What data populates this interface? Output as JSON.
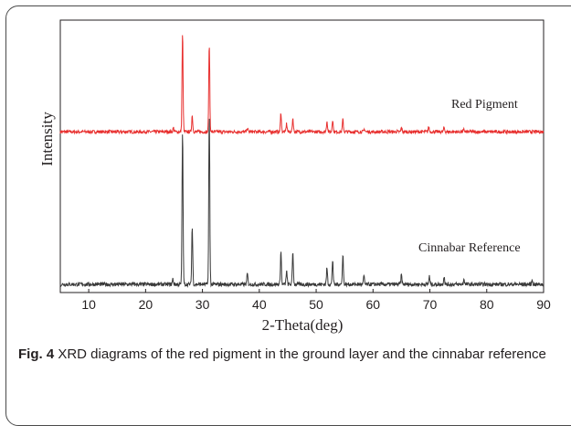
{
  "figure": {
    "label": "Fig. 4",
    "caption": "XRD diagrams of the red pigment in the ground layer and the cinnabar reference"
  },
  "chart_data": {
    "type": "line",
    "xlabel": "2-Theta(deg)",
    "ylabel": "Intensity",
    "xlim": [
      5,
      90
    ],
    "ylim": [
      0,
      100
    ],
    "xticks": [
      10,
      20,
      30,
      40,
      50,
      60,
      70,
      80,
      90
    ],
    "grid": false,
    "yticks_shown": false,
    "colors": {
      "red_pigment": "#e8302f",
      "cinnabar": "#3a3a3a"
    },
    "series": [
      {
        "name": "Red Pigment",
        "baseline": 59,
        "noise": 0.6,
        "peaks": [
          [
            24.9,
            1.5
          ],
          [
            26.5,
            36
          ],
          [
            28.2,
            6
          ],
          [
            31.2,
            32
          ],
          [
            37.9,
            1.5
          ],
          [
            43.8,
            7
          ],
          [
            44.8,
            3
          ],
          [
            45.9,
            5
          ],
          [
            51.9,
            4
          ],
          [
            52.9,
            4.5
          ],
          [
            54.7,
            4.5
          ],
          [
            58.5,
            1
          ],
          [
            65,
            1.5
          ],
          [
            69.8,
            1.8
          ],
          [
            72.5,
            1.5
          ],
          [
            76,
            0.8
          ]
        ]
      },
      {
        "name": "Cinnabar Reference",
        "baseline": 3,
        "noise": 0.7,
        "peaks": [
          [
            24.8,
            2
          ],
          [
            26.5,
            56
          ],
          [
            28.2,
            21
          ],
          [
            31.2,
            62
          ],
          [
            37.9,
            4
          ],
          [
            43.8,
            12
          ],
          [
            44.8,
            5
          ],
          [
            45.9,
            12
          ],
          [
            51.9,
            6
          ],
          [
            52.9,
            9
          ],
          [
            54.7,
            11
          ],
          [
            58.4,
            3
          ],
          [
            65,
            3.5
          ],
          [
            69.9,
            3
          ],
          [
            72.5,
            3
          ],
          [
            76,
            2
          ],
          [
            88,
            1.5
          ]
        ]
      }
    ]
  }
}
